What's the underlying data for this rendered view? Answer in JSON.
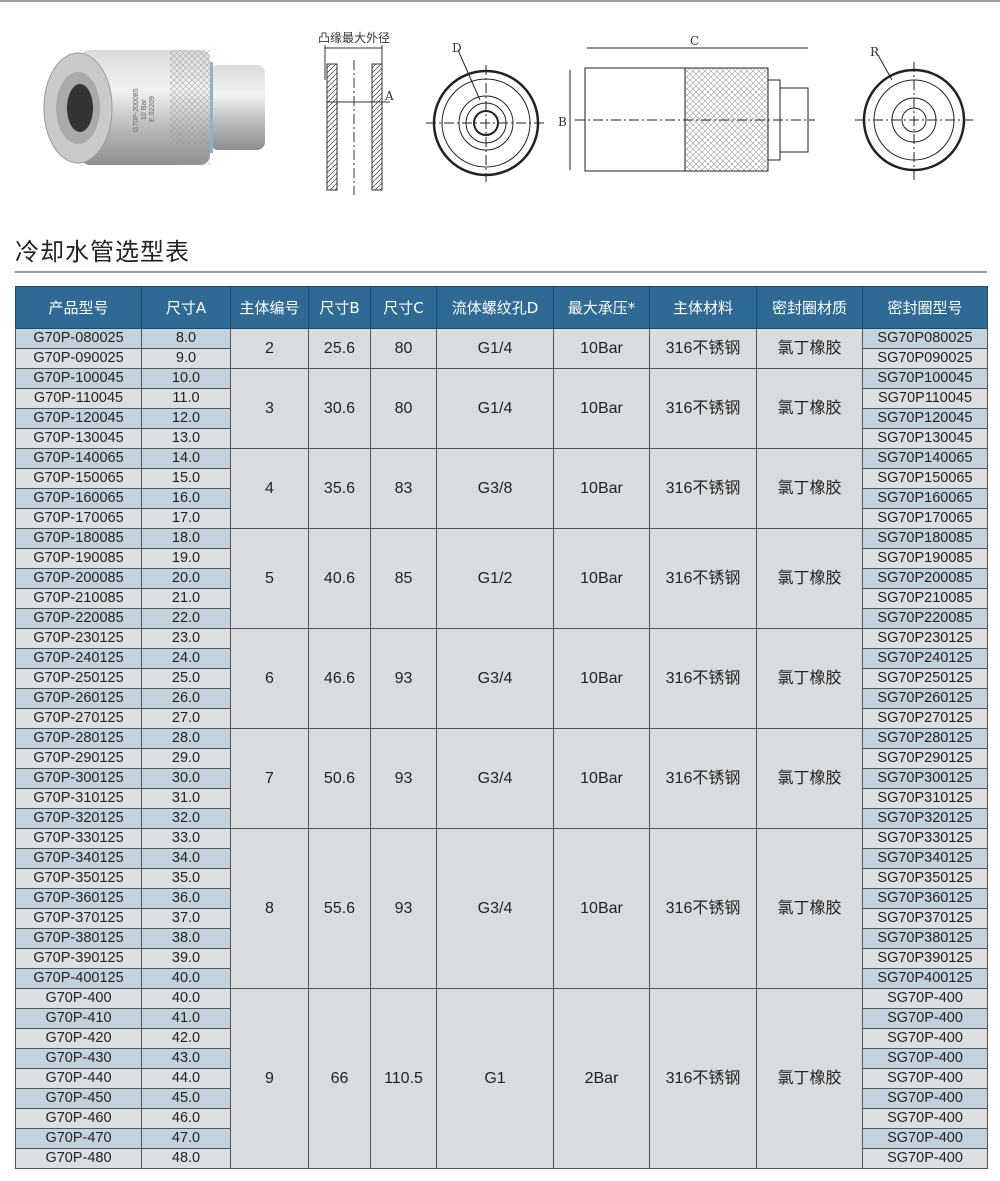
{
  "figures": {
    "flange_label": "凸缘最大外径",
    "dim_a": "A",
    "dim_b": "B",
    "dim_c": "C",
    "dim_d": "D",
    "dim_r": "R",
    "product_marking": [
      "G70P-200085",
      "10 Bar",
      "E.02209"
    ]
  },
  "title": "冷却水管选型表",
  "colors": {
    "header": "#2f6a95",
    "row_blue": "#c3d3de",
    "row_gray": "#dcdfe2",
    "merged": "#d8dcdf"
  },
  "table": {
    "headers": [
      "产品型号",
      "尺寸A",
      "主体编号",
      "尺寸B",
      "尺寸C",
      "流体螺纹孔D",
      "最大承压*",
      "主体材料",
      "密封圈材质",
      "密封圈型号"
    ],
    "groups": [
      {
        "body": "2",
        "B": "25.6",
        "C": "80",
        "D": "G1/4",
        "pressure": "10Bar",
        "material": "316不锈钢",
        "seal_material": "氯丁橡胶",
        "rows": [
          [
            "G70P-080025",
            "8.0",
            "SG70P080025"
          ],
          [
            "G70P-090025",
            "9.0",
            "SG70P090025"
          ]
        ]
      },
      {
        "body": "3",
        "B": "30.6",
        "C": "80",
        "D": "G1/4",
        "pressure": "10Bar",
        "material": "316不锈钢",
        "seal_material": "氯丁橡胶",
        "rows": [
          [
            "G70P-100045",
            "10.0",
            "SG70P100045"
          ],
          [
            "G70P-110045",
            "11.0",
            "SG70P110045"
          ],
          [
            "G70P-120045",
            "12.0",
            "SG70P120045"
          ],
          [
            "G70P-130045",
            "13.0",
            "SG70P130045"
          ]
        ]
      },
      {
        "body": "4",
        "B": "35.6",
        "C": "83",
        "D": "G3/8",
        "pressure": "10Bar",
        "material": "316不锈钢",
        "seal_material": "氯丁橡胶",
        "rows": [
          [
            "G70P-140065",
            "14.0",
            "SG70P140065"
          ],
          [
            "G70P-150065",
            "15.0",
            "SG70P150065"
          ],
          [
            "G70P-160065",
            "16.0",
            "SG70P160065"
          ],
          [
            "G70P-170065",
            "17.0",
            "SG70P170065"
          ]
        ]
      },
      {
        "body": "5",
        "B": "40.6",
        "C": "85",
        "D": "G1/2",
        "pressure": "10Bar",
        "material": "316不锈钢",
        "seal_material": "氯丁橡胶",
        "rows": [
          [
            "G70P-180085",
            "18.0",
            "SG70P180085"
          ],
          [
            "G70P-190085",
            "19.0",
            "SG70P190085"
          ],
          [
            "G70P-200085",
            "20.0",
            "SG70P200085"
          ],
          [
            "G70P-210085",
            "21.0",
            "SG70P210085"
          ],
          [
            "G70P-220085",
            "22.0",
            "SG70P220085"
          ]
        ]
      },
      {
        "body": "6",
        "B": "46.6",
        "C": "93",
        "D": "G3/4",
        "pressure": "10Bar",
        "material": "316不锈钢",
        "seal_material": "氯丁橡胶",
        "rows": [
          [
            "G70P-230125",
            "23.0",
            "SG70P230125"
          ],
          [
            "G70P-240125",
            "24.0",
            "SG70P240125"
          ],
          [
            "G70P-250125",
            "25.0",
            "SG70P250125"
          ],
          [
            "G70P-260125",
            "26.0",
            "SG70P260125"
          ],
          [
            "G70P-270125",
            "27.0",
            "SG70P270125"
          ]
        ]
      },
      {
        "body": "7",
        "B": "50.6",
        "C": "93",
        "D": "G3/4",
        "pressure": "10Bar",
        "material": "316不锈钢",
        "seal_material": "氯丁橡胶",
        "rows": [
          [
            "G70P-280125",
            "28.0",
            "SG70P280125"
          ],
          [
            "G70P-290125",
            "29.0",
            "SG70P290125"
          ],
          [
            "G70P-300125",
            "30.0",
            "SG70P300125"
          ],
          [
            "G70P-310125",
            "31.0",
            "SG70P310125"
          ],
          [
            "G70P-320125",
            "32.0",
            "SG70P320125"
          ]
        ]
      },
      {
        "body": "8",
        "B": "55.6",
        "C": "93",
        "D": "G3/4",
        "pressure": "10Bar",
        "material": "316不锈钢",
        "seal_material": "氯丁橡胶",
        "rows": [
          [
            "G70P-330125",
            "33.0",
            "SG70P330125"
          ],
          [
            "G70P-340125",
            "34.0",
            "SG70P340125"
          ],
          [
            "G70P-350125",
            "35.0",
            "SG70P350125"
          ],
          [
            "G70P-360125",
            "36.0",
            "SG70P360125"
          ],
          [
            "G70P-370125",
            "37.0",
            "SG70P370125"
          ],
          [
            "G70P-380125",
            "38.0",
            "SG70P380125"
          ],
          [
            "G70P-390125",
            "39.0",
            "SG70P390125"
          ],
          [
            "G70P-400125",
            "40.0",
            "SG70P400125"
          ]
        ]
      },
      {
        "body": "9",
        "B": "66",
        "C": "110.5",
        "D": "G1",
        "pressure": "2Bar",
        "material": "316不锈钢",
        "seal_material": "氯丁橡胶",
        "rows": [
          [
            "G70P-400",
            "40.0",
            "SG70P-400"
          ],
          [
            "G70P-410",
            "41.0",
            "SG70P-400"
          ],
          [
            "G70P-420",
            "42.0",
            "SG70P-400"
          ],
          [
            "G70P-430",
            "43.0",
            "SG70P-400"
          ],
          [
            "G70P-440",
            "44.0",
            "SG70P-400"
          ],
          [
            "G70P-450",
            "45.0",
            "SG70P-400"
          ],
          [
            "G70P-460",
            "46.0",
            "SG70P-400"
          ],
          [
            "G70P-470",
            "47.0",
            "SG70P-400"
          ],
          [
            "G70P-480",
            "48.0",
            "SG70P-400"
          ]
        ]
      }
    ]
  }
}
